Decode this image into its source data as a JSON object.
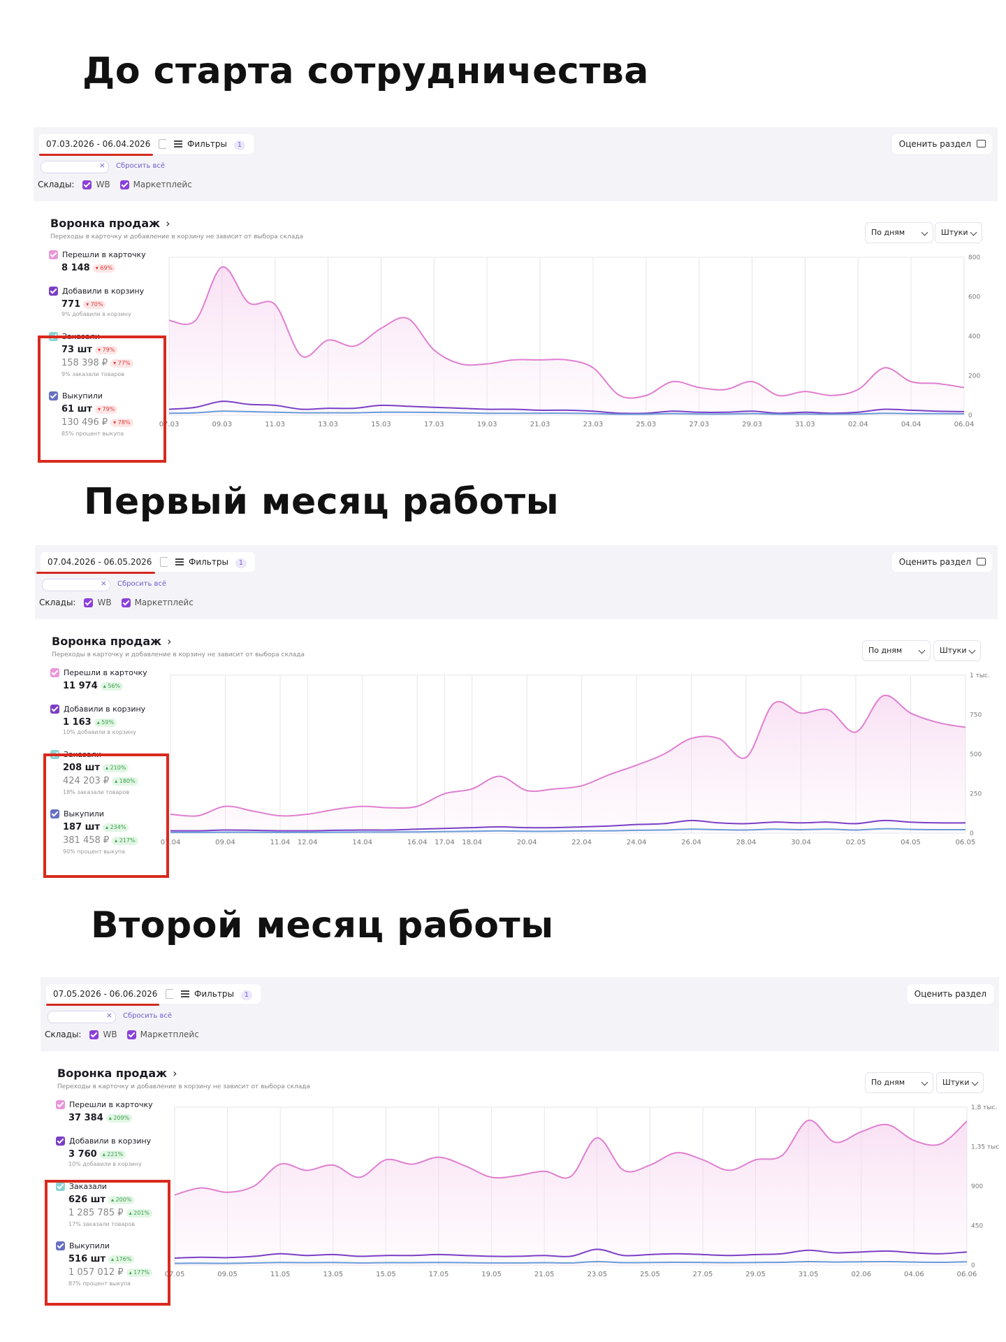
{
  "common": {
    "filters_label": "Фильтры",
    "filters_count": "1",
    "rate_label": "Оценить раздел",
    "reset_label": "Сбросить всё",
    "warehouses_label": "Склады:",
    "wb_label": "WB",
    "marketplace_label": "Маркетплейс",
    "card_title": "Воронка продаж",
    "card_subtitle": "Переходы в карточку и добавление в корзину не зависит от выбора склада",
    "period_dropdown": "По дням",
    "units_dropdown": "Штуки",
    "metric_labels": {
      "visits": "Перешли в карточку",
      "cart": "Добавили в корзину",
      "ordered": "Заказали",
      "bought": "Выкупили"
    }
  },
  "sections": [
    {
      "title": "До старта сотрудничества",
      "date_range": "07.03.2026 - 06.04.2026",
      "metrics": {
        "visits_value": "8 148",
        "visits_change": "69%",
        "visits_trend": "down",
        "cart_value": "771",
        "cart_change": "70%",
        "cart_trend": "down",
        "cart_note": "9% добавили в корзину",
        "ordered_qty": "73 шт",
        "ordered_qty_change": "79%",
        "ordered_sum": "158 398 ₽",
        "ordered_sum_change": "77%",
        "ordered_trend": "down",
        "ordered_note": "9% заказали товаров",
        "bought_qty": "61 шт",
        "bought_qty_change": "79%",
        "bought_sum": "130 496 ₽",
        "bought_sum_change": "78%",
        "bought_trend": "down",
        "bought_note": "85% процент выкупа"
      }
    },
    {
      "title": "Первый месяц работы",
      "date_range": "07.04.2026 - 06.05.2026",
      "metrics": {
        "visits_value": "11 974",
        "visits_change": "56%",
        "visits_trend": "up",
        "cart_value": "1 163",
        "cart_change": "59%",
        "cart_trend": "up",
        "cart_note": "10% добавили в корзину",
        "ordered_qty": "208 шт",
        "ordered_qty_change": "210%",
        "ordered_sum": "424 203 ₽",
        "ordered_sum_change": "180%",
        "ordered_trend": "up",
        "ordered_note": "18% заказали товаров",
        "bought_qty": "187 шт",
        "bought_qty_change": "234%",
        "bought_sum": "381 458 ₽",
        "bought_sum_change": "217%",
        "bought_trend": "up",
        "bought_note": "90% процент выкупа"
      }
    },
    {
      "title": "Второй месяц работы",
      "date_range": "07.05.2026 - 06.06.2026",
      "metrics": {
        "visits_value": "37 384",
        "visits_change": "209%",
        "visits_trend": "up",
        "cart_value": "3 760",
        "cart_change": "221%",
        "cart_trend": "up",
        "cart_note": "10% добавили в корзину",
        "ordered_qty": "626 шт",
        "ordered_qty_change": "200%",
        "ordered_sum": "1 285 785 ₽",
        "ordered_sum_change": "201%",
        "ordered_trend": "up",
        "ordered_note": "17% заказали товаров",
        "bought_qty": "516 шт",
        "bought_qty_change": "176%",
        "bought_sum": "1 057 012 ₽",
        "bought_sum_change": "177%",
        "bought_trend": "up",
        "bought_note": "87% процент выкупа"
      }
    }
  ],
  "chart_data": [
    {
      "type": "area",
      "x": [
        "07.03",
        "08.03",
        "09.03",
        "10.03",
        "11.03",
        "12.03",
        "13.03",
        "14.03",
        "15.03",
        "16.03",
        "17.03",
        "18.03",
        "19.03",
        "20.03",
        "21.03",
        "22.03",
        "23.03",
        "24.03",
        "25.03",
        "26.03",
        "27.03",
        "28.03",
        "29.03",
        "30.03",
        "31.03",
        "01.04",
        "02.04",
        "03.04",
        "04.04",
        "05.04",
        "06.04"
      ],
      "xticks": [
        "07.03",
        "09.03",
        "11.03",
        "13.03",
        "15.03",
        "17.03",
        "19.03",
        "21.03",
        "23.03",
        "25.03",
        "27.03",
        "29.03",
        "31.03",
        "02.04",
        "04.04",
        "06.04"
      ],
      "yticks": [
        "0",
        "200",
        "400",
        "600",
        "800"
      ],
      "ylim": [
        0,
        800
      ],
      "series": [
        {
          "color": "#e07fd0",
          "values": [
            480,
            480,
            750,
            570,
            560,
            300,
            380,
            350,
            440,
            490,
            330,
            260,
            260,
            280,
            280,
            280,
            240,
            100,
            100,
            170,
            140,
            130,
            170,
            100,
            120,
            100,
            130,
            240,
            170,
            160,
            140
          ]
        },
        {
          "color": "#7b3fc6",
          "values": [
            30,
            40,
            70,
            55,
            50,
            30,
            35,
            35,
            50,
            45,
            40,
            35,
            30,
            30,
            25,
            25,
            20,
            10,
            10,
            20,
            15,
            15,
            20,
            10,
            15,
            10,
            15,
            30,
            25,
            20,
            18
          ]
        },
        {
          "color": "#6a9ad8",
          "values": [
            10,
            12,
            20,
            18,
            15,
            12,
            12,
            12,
            15,
            15,
            14,
            12,
            10,
            10,
            10,
            10,
            8,
            5,
            5,
            8,
            6,
            6,
            8,
            5,
            6,
            5,
            6,
            10,
            8,
            8,
            7
          ]
        }
      ]
    },
    {
      "type": "area",
      "x": [
        "07.04",
        "08.04",
        "09.04",
        "10.04",
        "11.04",
        "12.04",
        "13.04",
        "14.04",
        "15.04",
        "16.04",
        "17.04",
        "18.04",
        "19.04",
        "20.04",
        "21.04",
        "22.04",
        "23.04",
        "24.04",
        "25.04",
        "26.04",
        "27.04",
        "28.04",
        "29.04",
        "30.04",
        "01.05",
        "02.05",
        "03.05",
        "04.05",
        "05.05",
        "06.05"
      ],
      "xticks": [
        "07.04",
        "09.04",
        "11.04",
        "12.04",
        "14.04",
        "16.04",
        "17.04",
        "18.04",
        "20.04",
        "22.04",
        "24.04",
        "26.04",
        "28.04",
        "30.04",
        "02.05",
        "04.05",
        "06.05"
      ],
      "yticks": [
        "0",
        "250",
        "500",
        "750",
        "1 тыс."
      ],
      "ylim": [
        0,
        1000
      ],
      "series": [
        {
          "color": "#e07fd0",
          "values": [
            120,
            110,
            170,
            140,
            110,
            120,
            150,
            170,
            160,
            170,
            250,
            280,
            360,
            270,
            280,
            300,
            370,
            430,
            500,
            600,
            600,
            480,
            820,
            760,
            780,
            640,
            870,
            760,
            700,
            670
          ]
        },
        {
          "color": "#7b3fc6",
          "values": [
            15,
            15,
            20,
            18,
            15,
            15,
            18,
            20,
            20,
            25,
            30,
            35,
            40,
            35,
            35,
            40,
            45,
            55,
            60,
            80,
            65,
            60,
            70,
            65,
            70,
            60,
            80,
            70,
            65,
            65
          ]
        },
        {
          "color": "#6a9ad8",
          "values": [
            5,
            5,
            6,
            6,
            5,
            5,
            6,
            7,
            7,
            8,
            10,
            12,
            14,
            12,
            12,
            14,
            15,
            18,
            20,
            25,
            22,
            20,
            25,
            22,
            25,
            20,
            28,
            24,
            22,
            22
          ]
        }
      ]
    },
    {
      "type": "area",
      "x": [
        "07.05",
        "08.05",
        "09.05",
        "10.05",
        "11.05",
        "12.05",
        "13.05",
        "14.05",
        "15.05",
        "16.05",
        "17.05",
        "18.05",
        "19.05",
        "20.05",
        "21.05",
        "22.05",
        "23.05",
        "24.05",
        "25.05",
        "26.05",
        "27.05",
        "28.05",
        "29.05",
        "30.05",
        "31.05",
        "01.06",
        "02.06",
        "03.06",
        "04.06",
        "05.06",
        "06.06"
      ],
      "xticks": [
        "07.05",
        "09.05",
        "11.05",
        "13.05",
        "15.05",
        "17.05",
        "19.05",
        "21.05",
        "23.05",
        "25.05",
        "27.05",
        "29.05",
        "31.05",
        "02.06",
        "04.06",
        "06.06"
      ],
      "yticks": [
        "0",
        "450",
        "900",
        "1,35 тыс",
        "1,8 тыс."
      ],
      "ylim": [
        0,
        1800
      ],
      "series": [
        {
          "color": "#e07fd0",
          "values": [
            800,
            880,
            830,
            900,
            1150,
            1080,
            1140,
            1000,
            1200,
            1150,
            1230,
            1130,
            1000,
            1020,
            1070,
            1010,
            1450,
            1080,
            1140,
            1280,
            1200,
            1080,
            1200,
            1250,
            1650,
            1400,
            1520,
            1600,
            1420,
            1380,
            1640
          ]
        },
        {
          "color": "#7b3fc6",
          "values": [
            80,
            90,
            85,
            100,
            130,
            110,
            120,
            100,
            110,
            110,
            120,
            110,
            100,
            100,
            110,
            100,
            180,
            110,
            120,
            130,
            120,
            110,
            120,
            130,
            170,
            140,
            150,
            160,
            140,
            130,
            150
          ]
        },
        {
          "color": "#6a9ad8",
          "values": [
            20,
            22,
            20,
            25,
            30,
            28,
            30,
            25,
            28,
            28,
            30,
            28,
            25,
            25,
            28,
            25,
            40,
            28,
            30,
            32,
            30,
            28,
            30,
            32,
            40,
            35,
            38,
            40,
            35,
            32,
            38
          ]
        }
      ]
    }
  ]
}
